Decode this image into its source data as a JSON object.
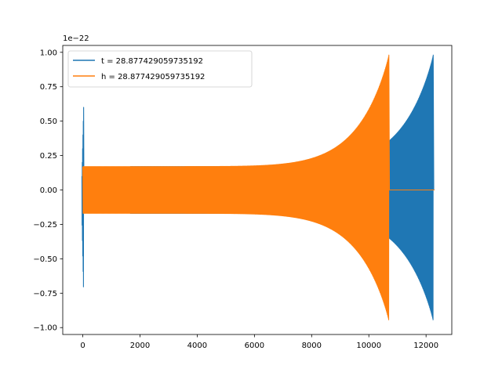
{
  "chart_data": {
    "type": "line",
    "title": "",
    "xlabel": "",
    "ylabel": "",
    "y_scale_label": "1e−22",
    "xlim": [
      -700,
      12900
    ],
    "ylim": [
      -1.05,
      1.05
    ],
    "x_ticks": [
      0,
      2000,
      4000,
      6000,
      8000,
      10000,
      12000
    ],
    "x_tick_labels": [
      "0",
      "2000",
      "4000",
      "6000",
      "8000",
      "10000",
      "12000"
    ],
    "y_ticks": [
      1.0,
      0.75,
      0.5,
      0.25,
      0.0,
      -0.25,
      -0.5,
      -0.75,
      -1.0
    ],
    "y_tick_labels": [
      "1.00",
      "0.75",
      "0.50",
      "0.25",
      "0.00",
      "−0.25",
      "−0.50",
      "−0.75",
      "−1.00"
    ],
    "grid": false,
    "legend_position": "top-left",
    "series": [
      {
        "name": "t = 28.877429059735192",
        "color": "#1f77b4",
        "description": "burst near x=0 (peak 0.60, trough -0.76), zero until ~1650, then chirp growing from amplitude ~0.17 to peaks ~0.98/-0.95 ending near x=12250",
        "burst_x": 0,
        "burst_max": 0.6,
        "burst_min": -0.76,
        "chirp_start_x": 1650,
        "chirp_end_x": 12250,
        "start_amplitude": 0.17,
        "end_max": 0.98,
        "end_min": -0.95
      },
      {
        "name": "h = 28.877429059735192",
        "color": "#ff7f0e",
        "description": "chirp from x=0 with amplitude ~0.17 growing to peaks ~0.98/-0.95 near x=10700, then zero until ~12300",
        "chirp_start_x": 0,
        "chirp_end_x": 10700,
        "flat_end_x": 12300,
        "start_amplitude": 0.17,
        "end_max": 0.98,
        "end_min": -0.95
      }
    ]
  }
}
